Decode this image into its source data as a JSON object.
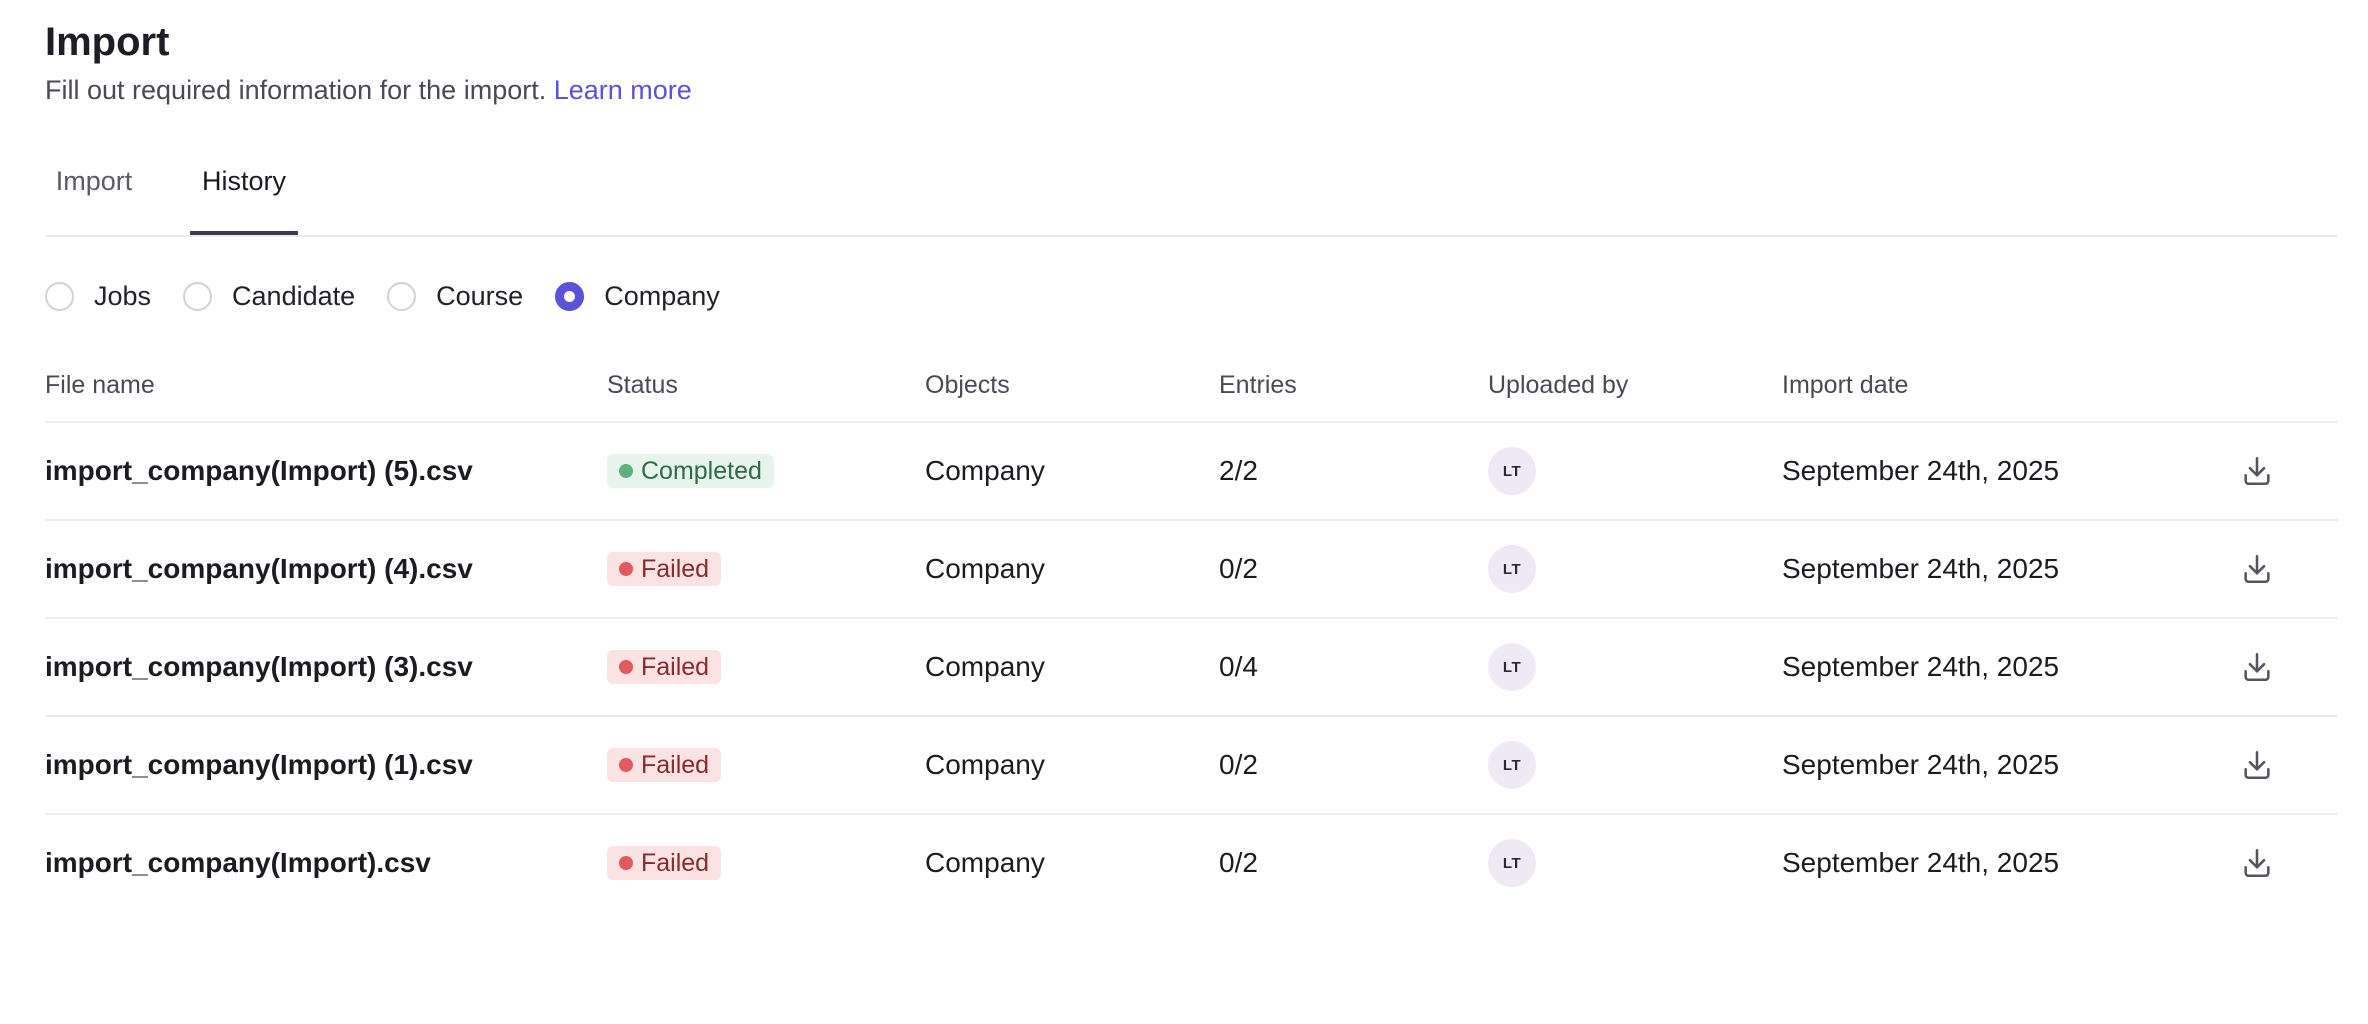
{
  "header": {
    "title": "Import",
    "subtitle": "Fill out required information for the import.",
    "learn_more": "Learn more"
  },
  "tabs": [
    {
      "label": "Import",
      "active": false
    },
    {
      "label": "History",
      "active": true
    }
  ],
  "filters": {
    "options": [
      {
        "label": "Jobs",
        "checked": false
      },
      {
        "label": "Candidate",
        "checked": false
      },
      {
        "label": "Course",
        "checked": false
      },
      {
        "label": "Company",
        "checked": true
      }
    ]
  },
  "table": {
    "columns": {
      "file_name": "File name",
      "status": "Status",
      "objects": "Objects",
      "entries": "Entries",
      "uploaded_by": "Uploaded by",
      "import_date": "Import date"
    },
    "rows": [
      {
        "file_name": "import_company(Import) (5).csv",
        "status": "Completed",
        "objects": "Company",
        "entries": "2/2",
        "uploaded_by": "LT",
        "import_date": "September 24th, 2025"
      },
      {
        "file_name": "import_company(Import) (4).csv",
        "status": "Failed",
        "objects": "Company",
        "entries": "0/2",
        "uploaded_by": "LT",
        "import_date": "September 24th, 2025"
      },
      {
        "file_name": "import_company(Import) (3).csv",
        "status": "Failed",
        "objects": "Company",
        "entries": "0/4",
        "uploaded_by": "LT",
        "import_date": "September 24th, 2025"
      },
      {
        "file_name": "import_company(Import) (1).csv",
        "status": "Failed",
        "objects": "Company",
        "entries": "0/2",
        "uploaded_by": "LT",
        "import_date": "September 24th, 2025"
      },
      {
        "file_name": "import_company(Import).csv",
        "status": "Failed",
        "objects": "Company",
        "entries": "0/2",
        "uploaded_by": "LT",
        "import_date": "September 24th, 2025"
      }
    ]
  },
  "icons": {
    "download": "download-icon"
  },
  "colors": {
    "accent": "#5a52d8",
    "completed_bg": "#e6f4ec",
    "completed_dot": "#5cb37c",
    "failed_bg": "#fbe3e4",
    "failed_dot": "#e05a5e",
    "avatar_bg": "#efe9f6"
  }
}
